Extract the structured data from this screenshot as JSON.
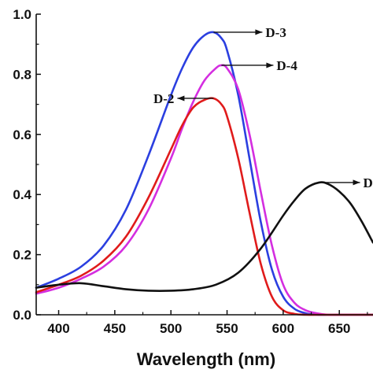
{
  "chart_data": {
    "type": "line",
    "title": "",
    "xlabel": "Wavelength (nm)",
    "ylabel": "",
    "xlim": [
      380,
      680
    ],
    "ylim": [
      0,
      1.0
    ],
    "xticks": [
      400,
      450,
      500,
      550,
      600,
      650
    ],
    "yticks": [
      0.0,
      0.2,
      0.4,
      0.6,
      0.8,
      1.0
    ],
    "xtick_labels": [
      "400",
      "450",
      "500",
      "550",
      "600",
      "650"
    ],
    "ytick_labels": [
      "0.0",
      "0.2",
      "0.4",
      "0.6",
      "0.8",
      "1.0"
    ],
    "grid": false,
    "series": [
      {
        "name": "D-3",
        "color": "#2b3fe0",
        "label_arrow": "right",
        "peak": [
          538,
          0.94
        ],
        "x": [
          380,
          400,
          420,
          440,
          460,
          480,
          500,
          510,
          520,
          530,
          538,
          545,
          550,
          560,
          570,
          580,
          590,
          600,
          610,
          620,
          630,
          640,
          650,
          660,
          670,
          680
        ],
        "y": [
          0.09,
          0.12,
          0.16,
          0.23,
          0.35,
          0.53,
          0.73,
          0.82,
          0.89,
          0.93,
          0.94,
          0.92,
          0.88,
          0.73,
          0.52,
          0.31,
          0.15,
          0.06,
          0.02,
          0.005,
          0.0,
          0.0,
          0.0,
          0.0,
          0.0,
          0.0
        ]
      },
      {
        "name": "D-4",
        "color": "#d42ee0",
        "label_arrow": "right",
        "peak": [
          545,
          0.83
        ],
        "x": [
          380,
          400,
          420,
          440,
          460,
          480,
          500,
          510,
          520,
          530,
          540,
          545,
          550,
          560,
          570,
          580,
          590,
          600,
          610,
          620,
          630,
          640,
          650,
          660,
          670,
          680
        ],
        "y": [
          0.07,
          0.09,
          0.12,
          0.16,
          0.23,
          0.35,
          0.52,
          0.62,
          0.71,
          0.78,
          0.82,
          0.83,
          0.82,
          0.75,
          0.6,
          0.41,
          0.23,
          0.1,
          0.04,
          0.015,
          0.005,
          0.0,
          0.0,
          0.0,
          0.0,
          0.0
        ]
      },
      {
        "name": "D-2",
        "color": "#e01b1b",
        "label_arrow": "left",
        "peak": [
          538,
          0.72
        ],
        "x": [
          380,
          400,
          420,
          440,
          460,
          480,
          500,
          510,
          520,
          530,
          538,
          545,
          550,
          560,
          570,
          580,
          590,
          600,
          610,
          620,
          630,
          640,
          650,
          660,
          670,
          680
        ],
        "y": [
          0.075,
          0.1,
          0.13,
          0.18,
          0.26,
          0.39,
          0.55,
          0.63,
          0.69,
          0.715,
          0.72,
          0.7,
          0.66,
          0.52,
          0.34,
          0.17,
          0.06,
          0.015,
          0.003,
          0.0,
          0.0,
          0.0,
          0.0,
          0.0,
          0.0,
          0.0
        ]
      },
      {
        "name": "D",
        "color": "#111111",
        "label_arrow": "right",
        "peak": [
          632,
          0.44
        ],
        "x": [
          380,
          400,
          420,
          440,
          460,
          480,
          500,
          520,
          540,
          560,
          580,
          600,
          610,
          620,
          632,
          640,
          650,
          660,
          670,
          680
        ],
        "y": [
          0.09,
          0.1,
          0.105,
          0.095,
          0.085,
          0.08,
          0.08,
          0.085,
          0.1,
          0.14,
          0.22,
          0.33,
          0.38,
          0.42,
          0.44,
          0.435,
          0.41,
          0.37,
          0.31,
          0.24
        ]
      }
    ]
  }
}
